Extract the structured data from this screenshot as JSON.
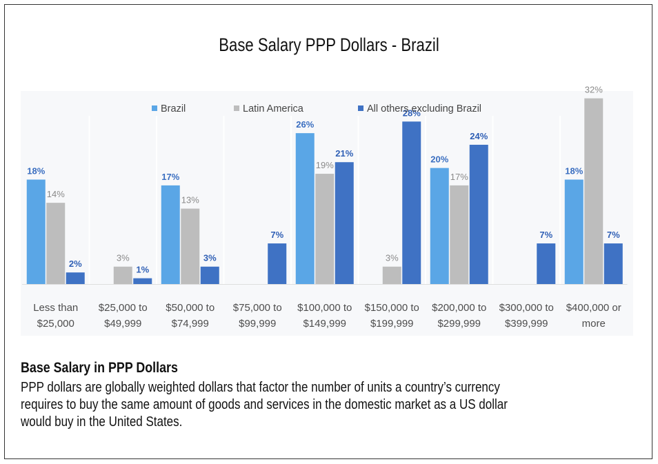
{
  "chart_data": {
    "type": "bar",
    "title": "Base Salary PPP Dollars - Brazil",
    "xlabel": "",
    "ylabel": "",
    "ylim": [
      0,
      35
    ],
    "grid": false,
    "legend_position": "top",
    "categories": [
      [
        "Less than",
        "$25,000"
      ],
      [
        "$25,000 to",
        "$49,999"
      ],
      [
        "$50,000 to",
        "$74,999"
      ],
      [
        "$75,000 to",
        "$99,999"
      ],
      [
        "$100,000 to",
        "$149,999"
      ],
      [
        "$150,000 to",
        "$199,999"
      ],
      [
        "$200,000 to",
        "$299,999"
      ],
      [
        "$300,000 to",
        "$399,999"
      ],
      [
        "$400,000 or",
        "more"
      ]
    ],
    "series": [
      {
        "name": "Brazil",
        "color": "#5aa6e6",
        "label_color": "#3a6ec0",
        "values": [
          18,
          null,
          17,
          null,
          26,
          null,
          20,
          null,
          18
        ],
        "labels": [
          "18%",
          "",
          "17%",
          "",
          "26%",
          "",
          "20%",
          "",
          "18%"
        ]
      },
      {
        "name": "Latin America",
        "color": "#bdbdbd",
        "label_color": "#8a8a8a",
        "values": [
          14,
          3,
          13,
          null,
          19,
          3,
          17,
          null,
          32
        ],
        "labels": [
          "14%",
          "3%",
          "13%",
          "",
          "19%",
          "3%",
          "17%",
          "",
          "32%"
        ]
      },
      {
        "name": "All others excluding Brazil",
        "color": "#3f72c4",
        "label_color": "#2f5fb5",
        "values": [
          2,
          1,
          3,
          7,
          21,
          28,
          24,
          7,
          7
        ],
        "labels": [
          "2%",
          "1%",
          "3%",
          "7%",
          "21%",
          "28%",
          "24%",
          "7%",
          "7%"
        ]
      }
    ]
  },
  "description": {
    "title": "Base Salary in PPP Dollars",
    "lines": [
      "PPP dollars are globally weighted dollars that factor the number of units a country’s currency",
      "requires to buy the same amount of goods and services in the domestic market as a US dollar",
      "would buy in the United States."
    ]
  }
}
